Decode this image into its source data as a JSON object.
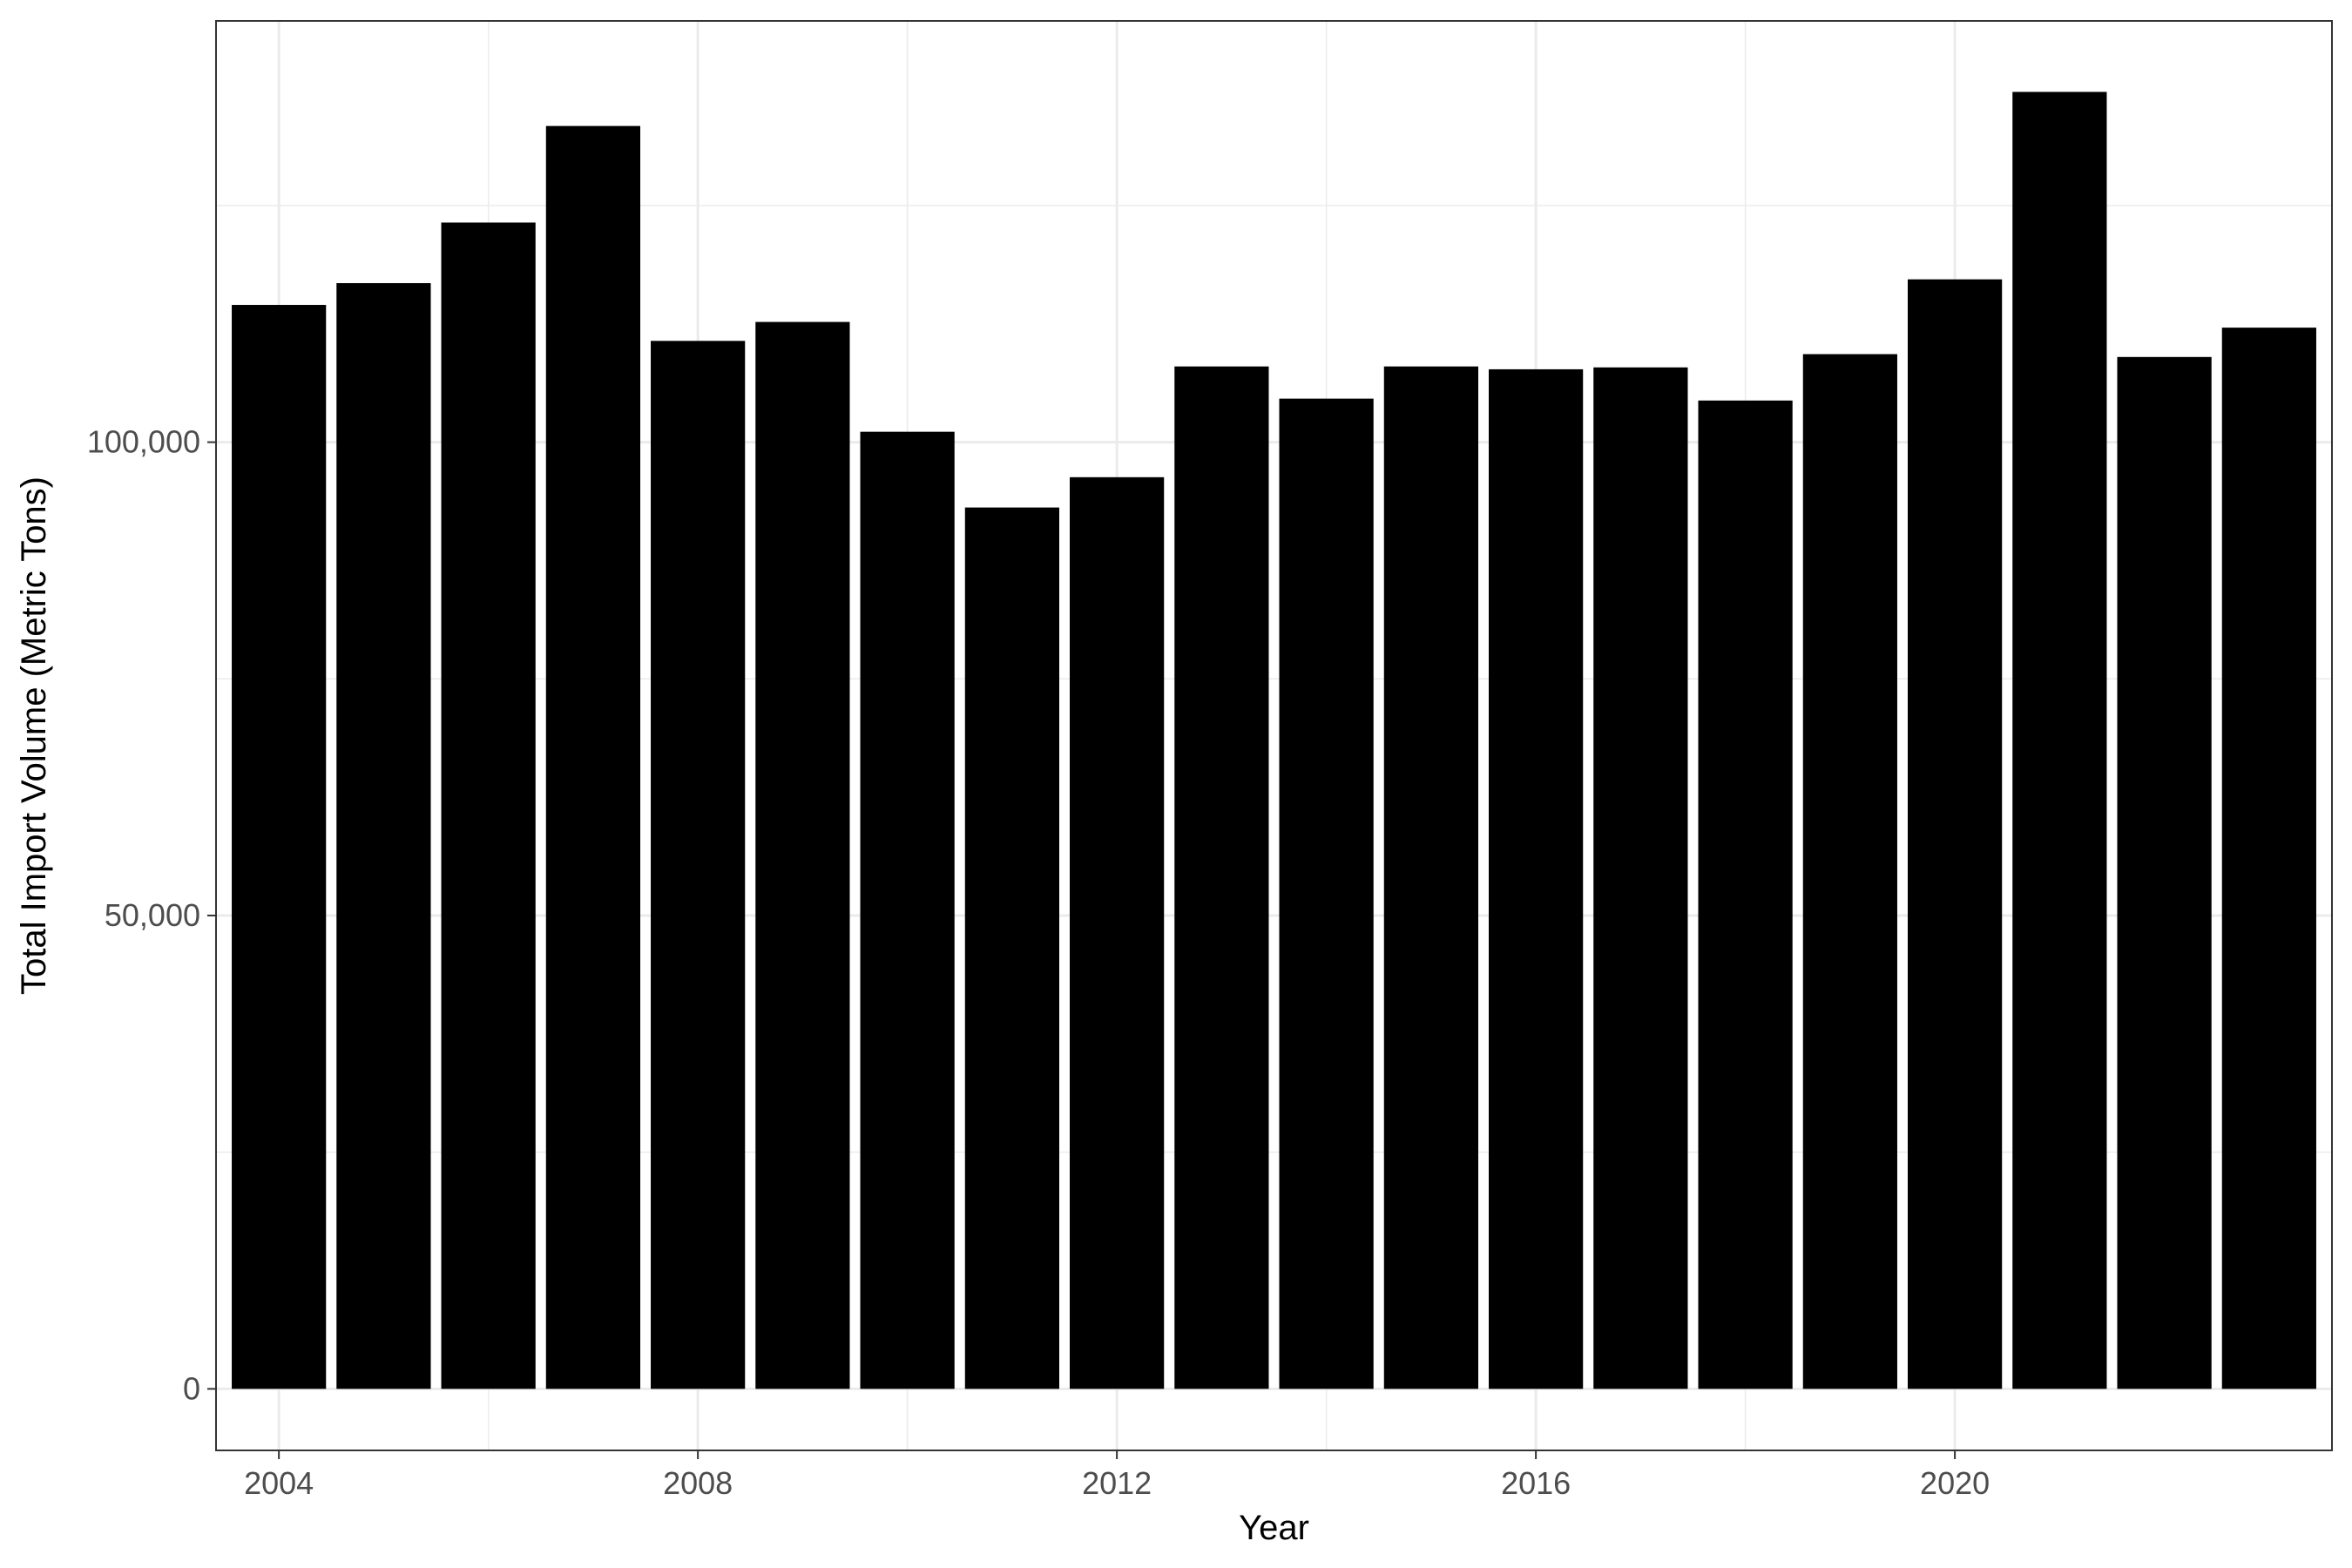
{
  "chart_data": {
    "type": "bar",
    "xlabel": "Year",
    "ylabel": "Total Import Volume (Metric Tons)",
    "x": [
      2004,
      2005,
      2006,
      2007,
      2008,
      2009,
      2010,
      2011,
      2012,
      2013,
      2014,
      2015,
      2016,
      2017,
      2018,
      2019,
      2020,
      2021,
      2022,
      2023
    ],
    "values": [
      114500,
      116800,
      123200,
      133400,
      110700,
      112700,
      101100,
      93100,
      96300,
      108000,
      104600,
      108000,
      107700,
      107900,
      104400,
      109300,
      117200,
      137000,
      109000,
      112100
    ],
    "xlim": [
      2003.4,
      2023.6
    ],
    "ylim": [
      -6500,
      144500
    ],
    "x_ticks": [
      2004,
      2008,
      2012,
      2016,
      2020
    ],
    "x_tick_labels": [
      "2004",
      "2008",
      "2012",
      "2016",
      "2020"
    ],
    "y_ticks": [
      0,
      50000,
      100000
    ],
    "y_tick_labels": [
      "0",
      "50,000",
      "100,000"
    ],
    "y_minor_gridlines": [
      25000,
      75000,
      125000
    ],
    "grid": true,
    "bar_color": "#000000",
    "grid_color": "#ebebeb",
    "panel_border_color": "#333333"
  }
}
